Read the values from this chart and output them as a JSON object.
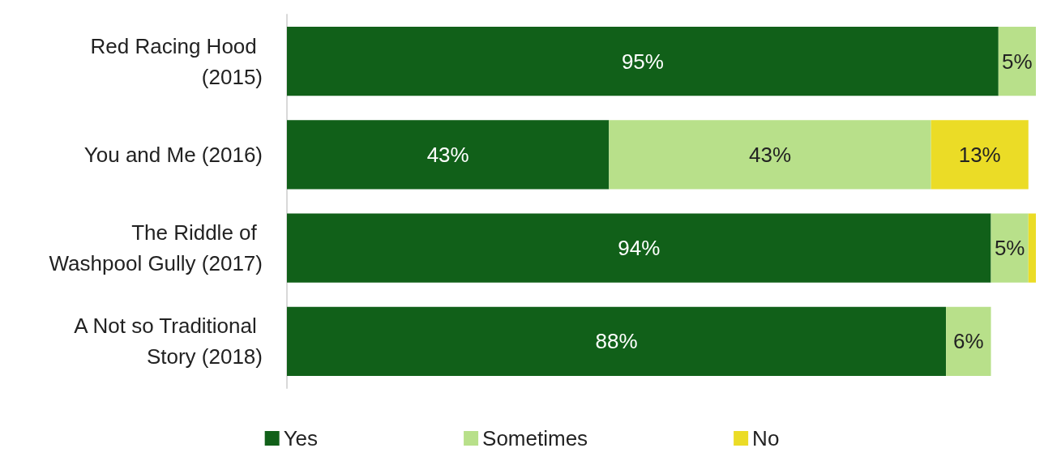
{
  "chart_data": {
    "type": "bar",
    "orientation": "horizontal",
    "stacked": true,
    "legend": "bottom",
    "tick_labels": "y",
    "xlim": [
      0,
      100
    ],
    "categories": [
      "Red Racing Hood (2015)",
      "You and Me (2016)",
      "The Riddle of Washpool Gully (2017)",
      "A Not so Traditional Story (2018)"
    ],
    "series": [
      {
        "name": "Yes",
        "color": "#116019",
        "values": [
          95,
          43,
          94,
          88
        ],
        "value_labels": [
          "95%",
          "43%",
          "94%",
          "88%"
        ]
      },
      {
        "name": "Sometimes",
        "color": "#b8e08a",
        "values": [
          5,
          43,
          5,
          6
        ],
        "value_labels": [
          "5%",
          "43%",
          "5%",
          "6%"
        ]
      },
      {
        "name": "No",
        "color": "#ebdc26",
        "values": [
          null,
          13,
          1,
          null
        ],
        "value_labels": [
          null,
          "13%",
          null,
          null
        ]
      }
    ]
  }
}
